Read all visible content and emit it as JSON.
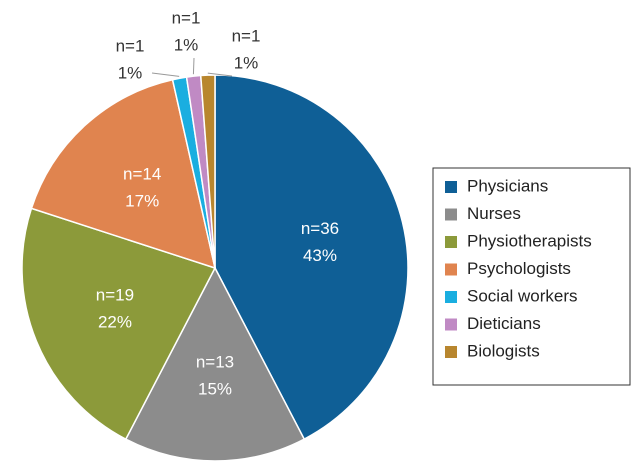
{
  "chart_data": {
    "type": "pie",
    "categories": [
      "Physicians",
      "Nurses",
      "Physiotherapists",
      "Psychologists",
      "Social workers",
      "Dieticians",
      "Biologists"
    ],
    "values": [
      36,
      13,
      19,
      14,
      1,
      1,
      1
    ],
    "value_labels": [
      "n=36",
      "n=13",
      "n=19",
      "n=14",
      "n=1",
      "n=1",
      "n=1"
    ],
    "percents": [
      43,
      15,
      22,
      17,
      1,
      1,
      1
    ],
    "percent_labels": [
      "43%",
      "15%",
      "22%",
      "17%",
      "1%",
      "1%",
      "1%"
    ],
    "colors": [
      "#0f5f96",
      "#8c8c8c",
      "#8c9a3a",
      "#e0844f",
      "#1aaee0",
      "#c08ac4",
      "#b8862e"
    ],
    "legend": "right"
  }
}
